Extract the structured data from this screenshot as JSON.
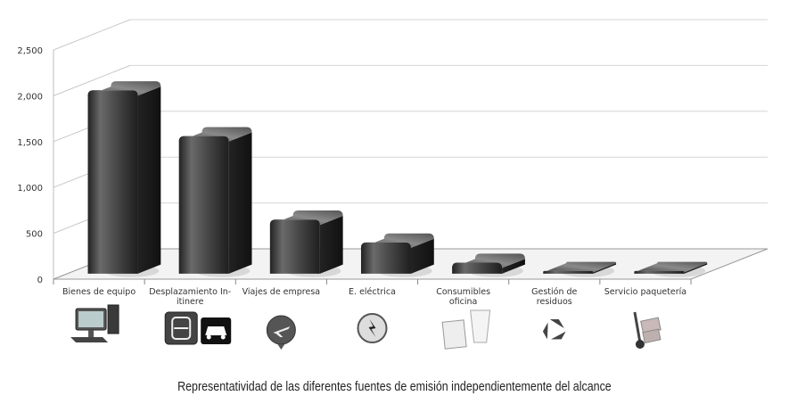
{
  "chart_data": {
    "type": "bar",
    "title": "",
    "xlabel": "",
    "ylabel": "",
    "categories": [
      "Bienes de equipo",
      "Desplazamiento In-itinere",
      "Viajes de empresa",
      "E. eléctrica",
      "Consumibles oficina",
      "Gestión de residuos",
      "Servicio paquetería"
    ],
    "category_lines": [
      [
        "Bienes de equipo"
      ],
      [
        "Desplazamiento In-",
        "itinere"
      ],
      [
        "Viajes de empresa"
      ],
      [
        "E. eléctrica"
      ],
      [
        "Consumibles",
        "oficina"
      ],
      [
        "Gestión de",
        "residuos"
      ],
      [
        "Servicio paquetería"
      ]
    ],
    "values": [
      2000,
      1500,
      590,
      340,
      120,
      20,
      20
    ],
    "ylim": [
      0,
      2500
    ],
    "yticks": [
      "0",
      "500",
      "1,000",
      "1,500",
      "2,000",
      "2,500"
    ],
    "grid": true,
    "legend": "none",
    "style": "3d",
    "bar_color": "#3a3a3a",
    "icons": [
      "computer-icon",
      "train-car-icon",
      "airplane-icon",
      "lightning-icon",
      "paper-cup-icon",
      "recycle-icon",
      "hand-truck-icon"
    ]
  },
  "caption": "Representatividad de las diferentes fuentes de emisión independientemente del alcance"
}
